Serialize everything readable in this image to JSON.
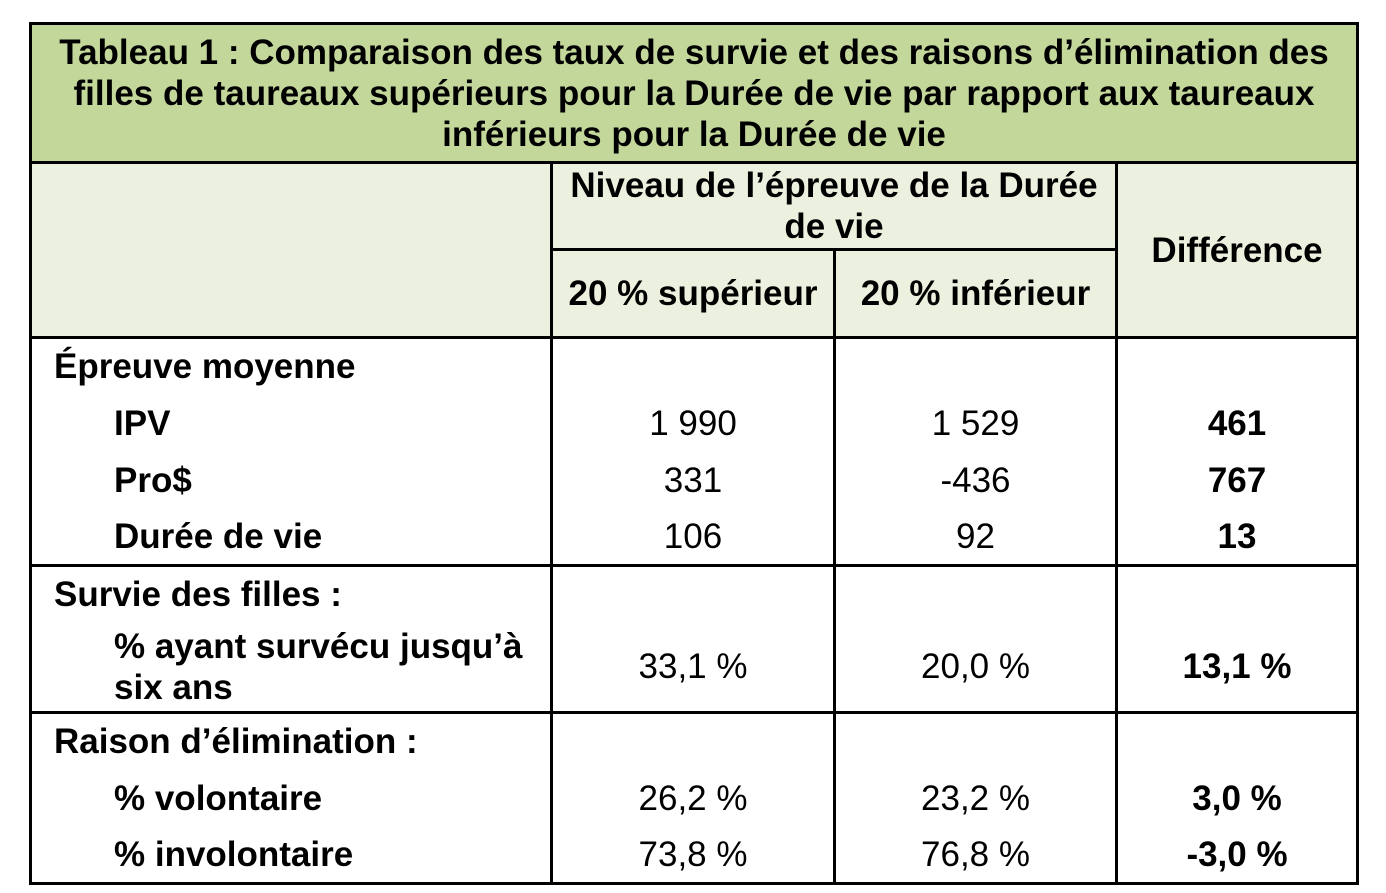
{
  "title": "Tableau 1 : Comparaison des taux de survie et des raisons d’élimination des filles de taureaux supérieurs pour la Durée de vie par rapport aux taureaux inférieurs pour la Durée de vie",
  "header": {
    "group": "Niveau de l’épreuve de la Durée de vie",
    "col_top": "20 % supérieur",
    "col_bottom": "20 % inférieur",
    "col_diff": "Différence"
  },
  "sections": {
    "proof": {
      "heading": "Épreuve moyenne",
      "rows": [
        {
          "label": "IPV",
          "top": "1 990",
          "bottom": "1 529",
          "diff": "461"
        },
        {
          "label": "Pro$",
          "top": "331",
          "bottom": "-436",
          "diff": "767"
        },
        {
          "label": "Durée de vie",
          "top": "106",
          "bottom": "92",
          "diff": "13"
        }
      ]
    },
    "survival": {
      "heading": "Survie des filles :",
      "rows": [
        {
          "label": "% ayant survécu jusqu’à six ans",
          "top": "33,1 %",
          "bottom": "20,0 %",
          "diff": "13,1 %"
        }
      ]
    },
    "culling": {
      "heading": "Raison d’élimination :",
      "rows": [
        {
          "label": "% volontaire",
          "top": "26,2 %",
          "bottom": "23,2 %",
          "diff": "3,0 %"
        },
        {
          "label": "% involontaire",
          "top": "73,8 %",
          "bottom": "76,8 %",
          "diff": "-3,0 %"
        }
      ]
    }
  }
}
